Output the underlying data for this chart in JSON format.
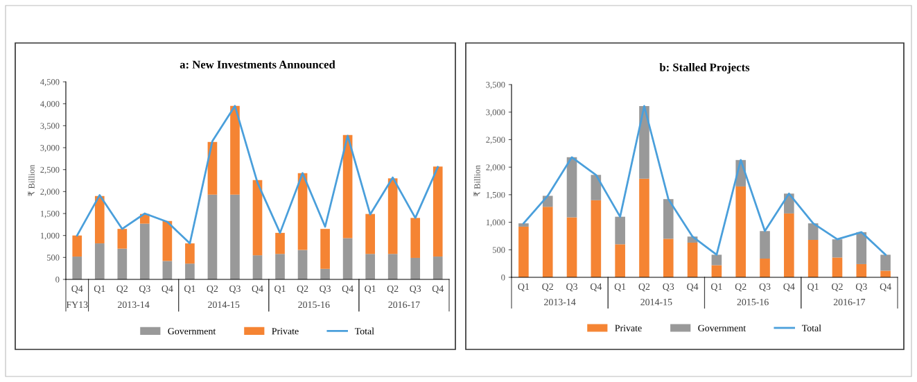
{
  "chart_data": [
    {
      "type": "bar",
      "stacked": true,
      "title": "a: New Investments Announced",
      "ylabel": "₹ Billion",
      "categories": [
        "Q4",
        "Q1",
        "Q2",
        "Q3",
        "Q4",
        "Q1",
        "Q2",
        "Q3",
        "Q4",
        "Q1",
        "Q2",
        "Q3",
        "Q4",
        "Q1",
        "Q2",
        "Q3",
        "Q4"
      ],
      "annotations": [
        "FY13",
        "2013-14",
        "2014-15",
        "2015-16",
        "2016-17"
      ],
      "series": [
        {
          "name": "Government",
          "color": "#999999",
          "values": [
            520,
            820,
            700,
            1270,
            420,
            360,
            1930,
            1930,
            550,
            580,
            670,
            240,
            940,
            580,
            580,
            490,
            520
          ]
        },
        {
          "name": "Private",
          "color": "#f58433",
          "values": [
            480,
            1080,
            450,
            220,
            910,
            460,
            1200,
            2020,
            1710,
            480,
            1750,
            910,
            2350,
            910,
            1720,
            910,
            2050
          ]
        },
        {
          "name": "Total",
          "type": "line",
          "color": "#4a9fdb",
          "values": [
            1000,
            1920,
            1150,
            1500,
            1310,
            820,
            3150,
            3950,
            2200,
            1060,
            2420,
            1200,
            3270,
            1480,
            2320,
            1400,
            2560
          ]
        }
      ],
      "ylim": [
        0,
        4500
      ],
      "yticks": [
        0,
        500,
        {
          "value": 1000,
          "label": "1,000"
        },
        {
          "value": 1500,
          "label": "1,500"
        },
        {
          "value": 2000,
          "label": "2,000"
        },
        {
          "value": 2500,
          "label": "2,500"
        },
        {
          "value": 3000,
          "label": "3,000"
        },
        {
          "value": 3500,
          "label": "3,500"
        },
        {
          "value": 4000,
          "label": "4,000"
        },
        {
          "value": 4500,
          "label": "4,500"
        }
      ],
      "legend": "bottom"
    },
    {
      "type": "bar",
      "stacked": true,
      "title": "b: Stalled Projects",
      "ylabel": "₹ Billion",
      "categories": [
        "Q1",
        "Q2",
        "Q3",
        "Q4",
        "Q1",
        "Q2",
        "Q3",
        "Q4",
        "Q1",
        "Q2",
        "Q3",
        "Q4",
        "Q1",
        "Q2",
        "Q3",
        "Q4"
      ],
      "annotations": [
        "2013-14",
        "2014-15",
        "2015-16",
        "2016-17"
      ],
      "series": [
        {
          "name": "Private",
          "color": "#f58433",
          "values": [
            920,
            1280,
            1090,
            1400,
            600,
            1790,
            700,
            630,
            220,
            1650,
            340,
            1160,
            680,
            360,
            240,
            120
          ]
        },
        {
          "name": "Government",
          "color": "#999999",
          "values": [
            60,
            200,
            1090,
            460,
            500,
            1320,
            720,
            110,
            190,
            480,
            500,
            360,
            300,
            330,
            580,
            290
          ]
        },
        {
          "name": "Total",
          "type": "line",
          "color": "#4a9fdb",
          "values": [
            980,
            1480,
            2180,
            1860,
            1100,
            3110,
            1420,
            740,
            410,
            2130,
            840,
            1520,
            980,
            690,
            820,
            410
          ]
        }
      ],
      "ylim": [
        0,
        3500
      ],
      "yticks": [
        0,
        500,
        {
          "value": 1000,
          "label": "1,000"
        },
        {
          "value": 1500,
          "label": "1,500"
        },
        {
          "value": 2000,
          "label": "2,000"
        },
        {
          "value": 2500,
          "label": "2,500"
        },
        {
          "value": 3000,
          "label": "3,000"
        },
        {
          "value": 3500,
          "label": "3,500"
        }
      ],
      "legend": "bottom"
    }
  ]
}
